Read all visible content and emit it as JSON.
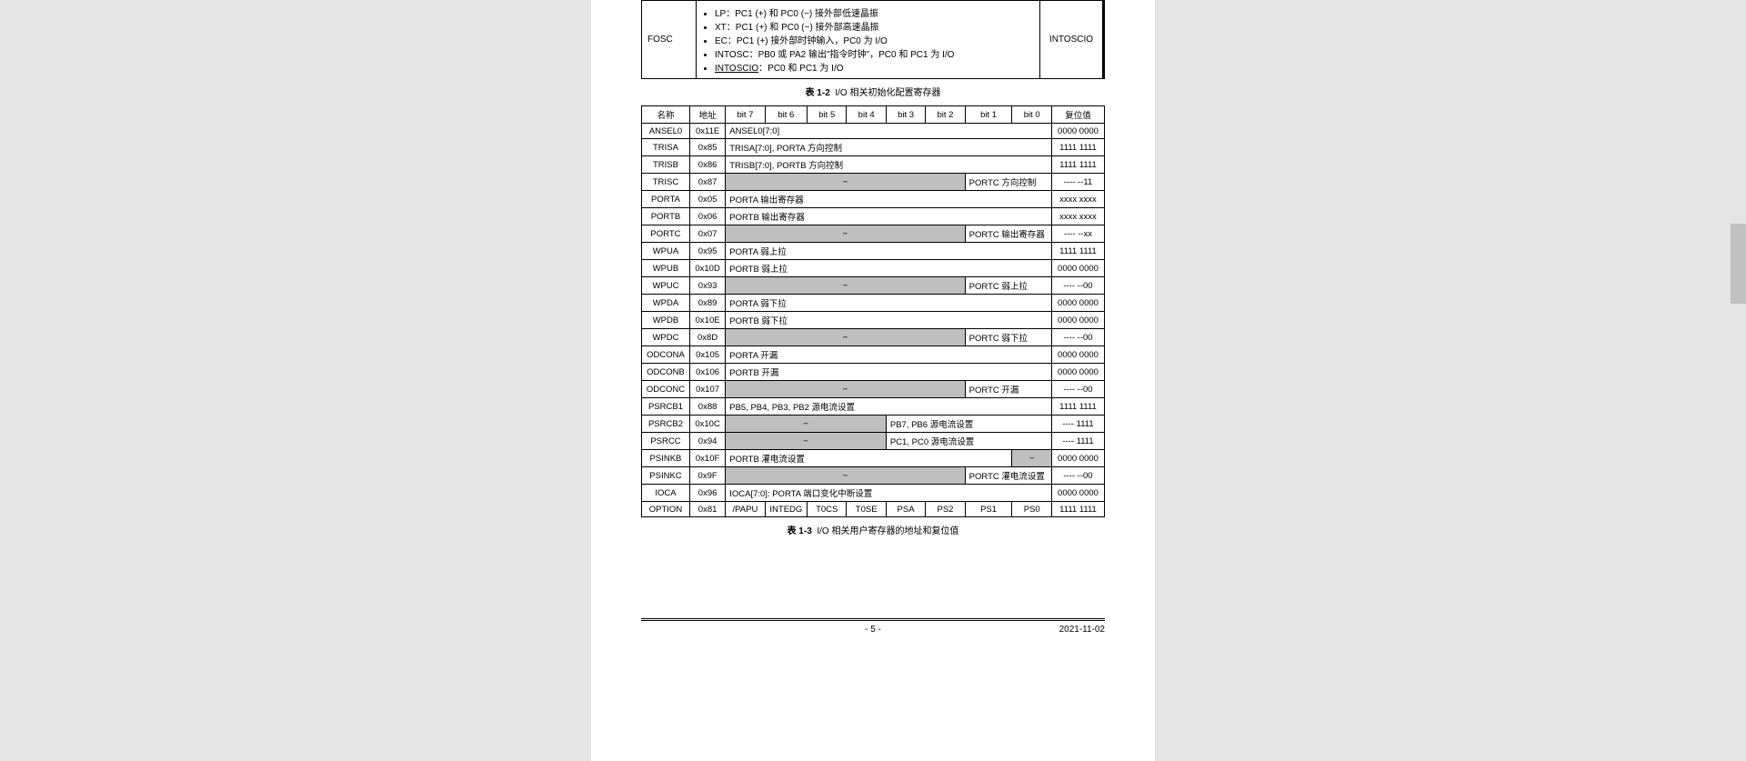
{
  "colors": {
    "page_bg": "#ffffff",
    "body_bg": "#e5e5e5",
    "border": "#000000",
    "shade": "#bfbfbf",
    "scrollbar": "#c1c1c1"
  },
  "fosc": {
    "label": "FOSC",
    "reset": "INTOSCIO",
    "items": [
      "LP：PC1 (+)  和 PC0 (−)  接外部低速晶振",
      "XT：PC1 (+)  和 PC0 (−)  接外部高速晶振",
      "EC：PC1 (+)  接外部时钟输入，PC0 为 I/O",
      "INTOSC：PB0 或 PA2 输出\"指令时钟\"，PC0 和 PC1 为 I/O"
    ],
    "last_item_u": "INTOSCIO",
    "last_item_rest": "：PC0 和 PC1 为 I/O"
  },
  "caption1_num": "表  1-2",
  "caption1_txt": "I/O 相关初始化配置寄存器",
  "caption2_num": "表  1-3",
  "caption2_txt": "I/O 相关用户寄存器的地址和复位值",
  "hdr": {
    "name": "名称",
    "addr": "地址",
    "b7": "bit 7",
    "b6": "bit 6",
    "b5": "bit 5",
    "b4": "bit 4",
    "b3": "bit 3",
    "b2": "bit 2",
    "b1": "bit 1",
    "b0": "bit 0",
    "reset": "复位值"
  },
  "r1": {
    "name": "ANSEL0",
    "addr": "0x11E",
    "desc": "ANSEL0[7:0]",
    "reset": "0000 0000"
  },
  "r2": {
    "name": "TRISA",
    "addr": "0x85",
    "desc": "TRISA[7:0], PORTA 方向控制",
    "reset": "1111 1111"
  },
  "r3": {
    "name": "TRISB",
    "addr": "0x86",
    "desc": "TRISB[7:0], PORTB 方向控制",
    "reset": "1111 1111"
  },
  "r4": {
    "name": "TRISC",
    "addr": "0x87",
    "d1": "−",
    "d2": "PORTC 方向控制",
    "reset": "---- --11"
  },
  "r5": {
    "name": "PORTA",
    "addr": "0x05",
    "desc": "PORTA 输出寄存器",
    "reset": "xxxx xxxx"
  },
  "r6": {
    "name": "PORTB",
    "addr": "0x06",
    "desc": "PORTB  输出寄存器",
    "reset": "xxxx xxxx"
  },
  "r7": {
    "name": "PORTC",
    "addr": "0x07",
    "d1": "−",
    "d2": "PORTC 输出寄存器",
    "reset": "---- --xx"
  },
  "r8": {
    "name": "WPUA",
    "addr": "0x95",
    "desc": "PORTA 弱上拉",
    "reset": "1111 1111"
  },
  "r9": {
    "name": "WPUB",
    "addr": "0x10D",
    "desc": "PORTB 弱上拉",
    "reset": "0000 0000"
  },
  "r10": {
    "name": "WPUC",
    "addr": "0x93",
    "d1": "−",
    "d2": "PORTC 弱上拉",
    "reset": "---- --00"
  },
  "r11": {
    "name": "WPDA",
    "addr": "0x89",
    "desc": "PORTA 弱下拉",
    "reset": "0000 0000"
  },
  "r12": {
    "name": "WPDB",
    "addr": "0x10E",
    "desc": "PORTB 弱下拉",
    "reset": "0000 0000"
  },
  "r13": {
    "name": "WPDC",
    "addr": "0x8D",
    "d1": "−",
    "d2": "PORTC 弱下拉",
    "reset": "---- --00"
  },
  "r14": {
    "name": "ODCONA",
    "addr": "0x105",
    "desc": "PORTA 开漏",
    "reset": "0000 0000"
  },
  "r15": {
    "name": "ODCONB",
    "addr": "0x106",
    "desc": "PORTB 开漏",
    "reset": "0000 0000"
  },
  "r16": {
    "name": "ODCONC",
    "addr": "0x107",
    "d1": "−",
    "d2": "PORTC 开漏",
    "reset": "---- --00"
  },
  "r17": {
    "name": "PSRCB1",
    "addr": "0x88",
    "desc": "PB5, PB4, PB3, PB2 源电流设置",
    "reset": "1111 1111"
  },
  "r18": {
    "name": "PSRCB2",
    "addr": "0x10C",
    "d1": "−",
    "d2": "PB7, PB6 源电流设置",
    "reset": "---- 1111"
  },
  "r19": {
    "name": "PSRCC",
    "addr": "0x94",
    "d1": "−",
    "d2": "PC1, PC0 源电流设置",
    "reset": "---- 1111"
  },
  "r20": {
    "name": "PSINKB",
    "addr": "0x10F",
    "desc": "PORTB 灌电流设置",
    "d2": "−",
    "reset": "0000 0000"
  },
  "r21": {
    "name": "PSINKC",
    "addr": "0x9F",
    "d1": "−",
    "d2": "PORTC 灌电流设置",
    "reset": "---- --00"
  },
  "r22": {
    "name": "IOCA",
    "addr": "0x96",
    "desc": "IOCA[7:0]: PORTA 端口变化中断设置",
    "reset": "0000 0000"
  },
  "r23": {
    "name": "OPTION",
    "addr": "0x81",
    "b7": "/PAPU",
    "b6": "INTEDG",
    "b5": "T0CS",
    "b4": "T0SE",
    "b3": "PSA",
    "b2": "PS2",
    "b1": "PS1",
    "b0": "PS0",
    "reset": "1111 1111"
  },
  "footer": {
    "page": "- 5 -",
    "date": "2021-11-02"
  }
}
